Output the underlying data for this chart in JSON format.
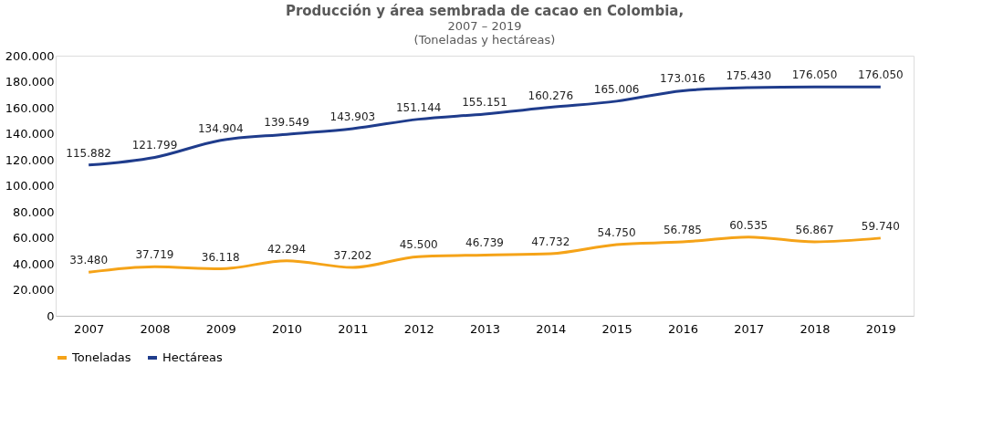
{
  "chart_data": {
    "type": "line",
    "title": "Producción y área sembrada de cacao en Colombia,",
    "subtitle": [
      "2007 – 2019",
      "(Toneladas y hectáreas)"
    ],
    "categories": [
      "2007",
      "2008",
      "2009",
      "2010",
      "2011",
      "2012",
      "2013",
      "2014",
      "2015",
      "2016",
      "2017",
      "2018",
      "2019"
    ],
    "series": [
      {
        "name": "Toneladas",
        "color": "#f5a318",
        "values": [
          33480,
          37719,
          36118,
          42294,
          37202,
          45500,
          46739,
          47732,
          54750,
          56785,
          60535,
          56867,
          59740
        ],
        "value_labels": [
          "33.480",
          "37.719",
          "36.118",
          "42.294",
          "37.202",
          "45.500",
          "46.739",
          "47.732",
          "54.750",
          "56.785",
          "60.535",
          "56.867",
          "59.740"
        ]
      },
      {
        "name": "Hectáreas",
        "color": "#1f3c8c",
        "values": [
          115882,
          121799,
          134904,
          139549,
          143903,
          151144,
          155151,
          160276,
          165006,
          173016,
          175430,
          176050,
          176050
        ],
        "value_labels": [
          "115.882",
          "121.799",
          "134.904",
          "139.549",
          "143.903",
          "151.144",
          "155.151",
          "160.276",
          "165.006",
          "173.016",
          "175.430",
          "176.050",
          "176.050"
        ]
      }
    ],
    "ylim": [
      0,
      200000
    ],
    "yticks": [
      {
        "value": 0,
        "label": "0"
      },
      {
        "value": 20000,
        "label": "20.000"
      },
      {
        "value": 40000,
        "label": "40.000"
      },
      {
        "value": 60000,
        "label": "60.000"
      },
      {
        "value": 80000,
        "label": "80.000"
      },
      {
        "value": 100000,
        "label": "100.000"
      },
      {
        "value": 120000,
        "label": "120.000"
      },
      {
        "value": 140000,
        "label": "140.000"
      },
      {
        "value": 160000,
        "label": "160.000"
      },
      {
        "value": 180000,
        "label": "180.000"
      },
      {
        "value": 200000,
        "label": "200.000"
      }
    ],
    "grid": false,
    "legend": "bottom",
    "marker": "none",
    "line_style": "solid"
  }
}
